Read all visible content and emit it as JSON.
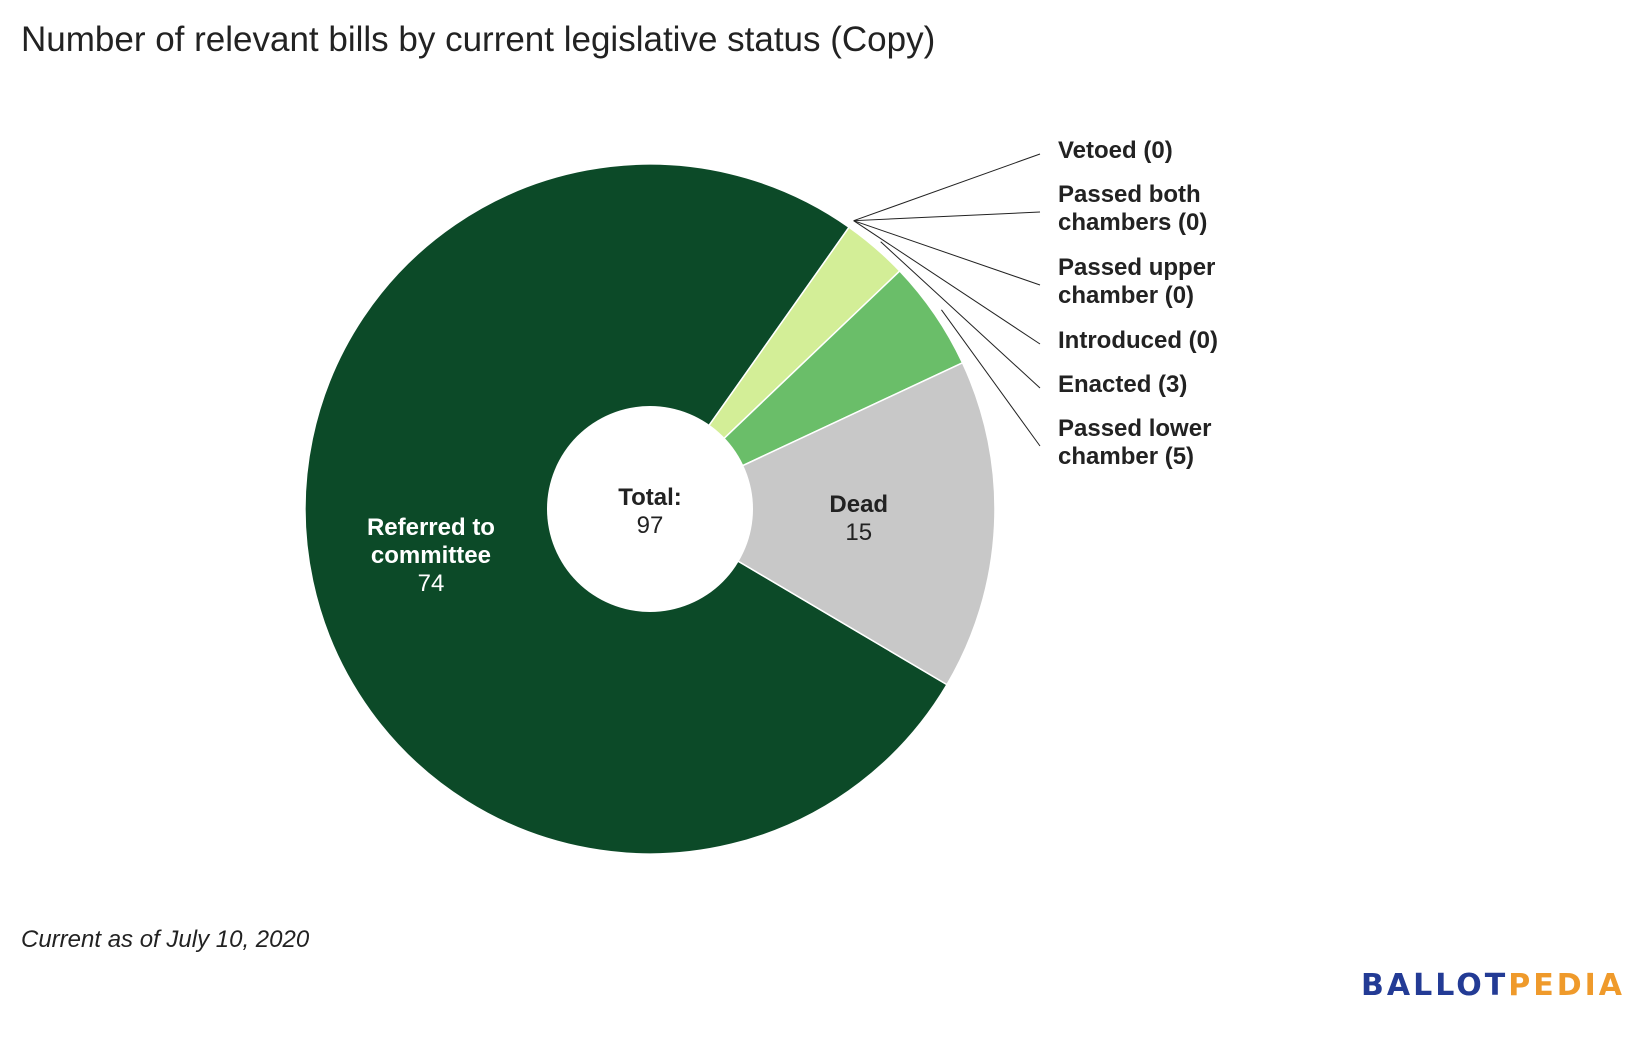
{
  "title": "Number of relevant bills by current legislative status (Copy)",
  "footnote": "Current as of July 10, 2020",
  "logo": {
    "part1": "BALLOT",
    "part2": "PEDIA"
  },
  "chart_data": {
    "type": "pie",
    "variant": "donut",
    "title": "Number of relevant bills by current legislative status (Copy)",
    "center_label": {
      "label": "Total:",
      "value": "97"
    },
    "slices": [
      {
        "label": "Referred to committee",
        "value": 74,
        "color": "#0c4a28",
        "label_position": "inside"
      },
      {
        "label": "Vetoed",
        "value": 0,
        "color": "#0c4a28",
        "label_position": "outside",
        "legend_text": "Vetoed (0)"
      },
      {
        "label": "Passed both chambers",
        "value": 0,
        "color": "#0c4a28",
        "label_position": "outside",
        "legend_text": "Passed both chambers (0)"
      },
      {
        "label": "Passed upper chamber",
        "value": 0,
        "color": "#0c4a28",
        "label_position": "outside",
        "legend_text": "Passed upper chamber (0)"
      },
      {
        "label": "Introduced",
        "value": 0,
        "color": "#0c4a28",
        "label_position": "outside",
        "legend_text": "Introduced (0)"
      },
      {
        "label": "Enacted",
        "value": 3,
        "color": "#d3ee97",
        "label_position": "outside",
        "legend_text": "Enacted (3)"
      },
      {
        "label": "Passed lower chamber",
        "value": 5,
        "color": "#6abe69",
        "label_position": "outside",
        "legend_text": "Passed lower chamber (5)"
      },
      {
        "label": "Dead",
        "value": 15,
        "color": "#c8c8c8",
        "label_position": "inside"
      }
    ]
  }
}
